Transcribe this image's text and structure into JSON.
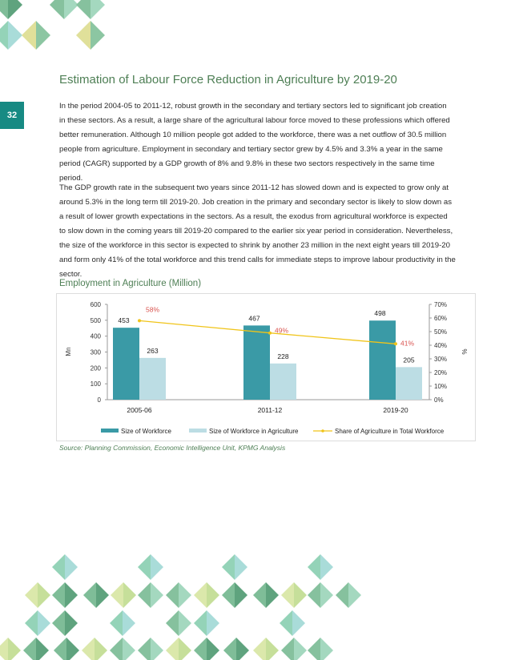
{
  "page_number": "32",
  "title": "Estimation of Labour Force Reduction in Agriculture by 2019-20",
  "paragraph1": [
    "In the period 2004-05 to 2011-12, robust growth in the secondary and tertiary sectors led to significant job creation",
    "in these sectors. As a result, a large share of the agricultural labour force moved to these professions which offered",
    "better remuneration. Although 10 million people got added to the workforce, there was a net outflow of 30.5 million",
    "people from agriculture. Employment in secondary and tertiary sector grew by 4.5% and 3.3% a year in the same",
    "period (CAGR) supported by a GDP growth of 8% and 9.8% in these two sectors respectively in the same time",
    "period."
  ],
  "paragraph2": [
    "The GDP growth rate in the subsequent two years since 2011-12 has slowed down and is expected to grow only at",
    "around 5.3% in the long term till 2019-20. Job creation in the primary and secondary sector is likely to slow down as",
    "a result of lower growth expectations in the sectors. As a result, the exodus from agricultural workforce is expected",
    "to slow down in the coming years till 2019-20 compared to the earlier six year period in consideration. Nevertheless,",
    "the size of the workforce in this sector is expected to shrink by another 23 million in the next eight years till 2019-20",
    "and form only 41% of the total workforce and this trend calls for immediate steps to improve labour productivity in the",
    "sector."
  ],
  "chart_title": "Employment in Agriculture (Million)",
  "source": "Source: Planning Commission, Economic Intelligence Unit, KPMG Analysis",
  "chart_data": {
    "type": "bar",
    "categories": [
      "2005-06",
      "2011-12",
      "2019-20"
    ],
    "series": [
      {
        "name": "Size of Workforce",
        "type": "bar",
        "axis": "left",
        "values": [
          453,
          467,
          498
        ],
        "color": "#3a9aa6"
      },
      {
        "name": "Size of Workforce in Agriculture",
        "type": "bar",
        "axis": "left",
        "values": [
          263,
          228,
          205
        ],
        "color": "#bcdde4"
      },
      {
        "name": "Share of Agriculture in Total Workforce",
        "type": "line",
        "axis": "right",
        "values": [
          58,
          49,
          41
        ],
        "labels": [
          "58%",
          "49%",
          "41%"
        ],
        "color": "#f0c419",
        "label_color": "#d9534f"
      }
    ],
    "ylabel": "Mn",
    "y2label": "%",
    "ylim": [
      0,
      600
    ],
    "y2lim": [
      0,
      70
    ],
    "yticks": [
      "0",
      "100",
      "200",
      "300",
      "400",
      "500",
      "600"
    ],
    "y2ticks": [
      "0%",
      "10%",
      "20%",
      "30%",
      "40%",
      "50%",
      "60%",
      "70%"
    ],
    "legend": "bottom"
  }
}
